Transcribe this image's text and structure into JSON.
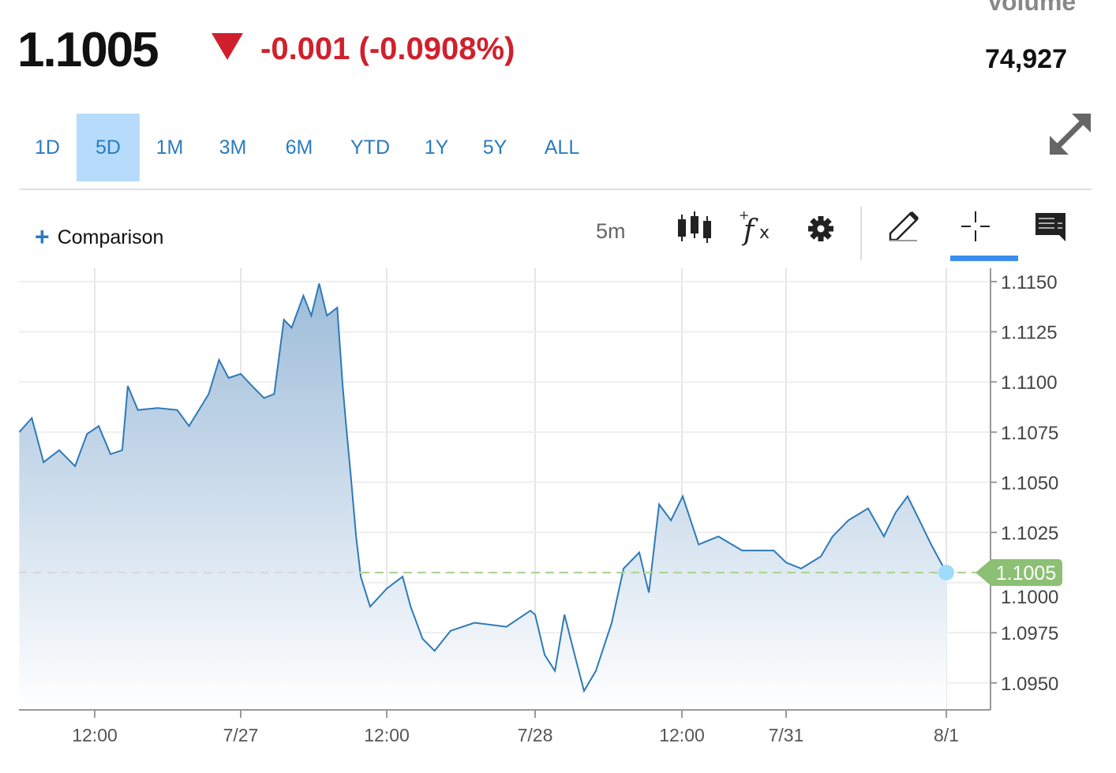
{
  "quote": {
    "price": "1.1005",
    "change": "-0.001 (-0.0908%)",
    "direction": "down",
    "volume_label": "Volume",
    "volume": "74,927",
    "down_color": "#d0202d"
  },
  "ranges": [
    {
      "label": "1D",
      "active": false
    },
    {
      "label": "5D",
      "active": true
    },
    {
      "label": "1M",
      "active": false
    },
    {
      "label": "3M",
      "active": false
    },
    {
      "label": "6M",
      "active": false
    },
    {
      "label": "YTD",
      "active": false
    },
    {
      "label": "1Y",
      "active": false
    },
    {
      "label": "5Y",
      "active": false
    },
    {
      "label": "ALL",
      "active": false
    }
  ],
  "toolbar": {
    "comparison": "Comparison",
    "interval": "5m",
    "tools": [
      "candlestick-icon",
      "indicator-fx-icon",
      "gear-icon",
      "pencil-icon",
      "crosshair-icon",
      "comment-icon"
    ],
    "active_tool": "crosshair-icon"
  },
  "chart_data": {
    "type": "area",
    "line_color": "#2d7ab8",
    "x_ticks": [
      "12:00",
      "7/27",
      "12:00",
      "7/28",
      "12:00",
      "7/31",
      "8/1"
    ],
    "y_ticks": [
      "1.1150",
      "1.1125",
      "1.1100",
      "1.1075",
      "1.1050",
      "1.1025",
      "1.1000",
      "1.0975",
      "1.0950"
    ],
    "ylim": [
      1.0936,
      1.115
    ],
    "grid": true,
    "last_value": "1.1005",
    "last_value_color": "#8cc074",
    "points": [
      [
        "7/26 05:48",
        1.1075
      ],
      [
        "7/26 06:50",
        1.1082
      ],
      [
        "7/26 07:48",
        1.106
      ],
      [
        "7/26 09:05",
        1.1066
      ],
      [
        "7/26 10:23",
        1.1058
      ],
      [
        "7/26 11:22",
        1.1074
      ],
      [
        "7/26 12:20",
        1.1078
      ],
      [
        "7/26 13:18",
        1.1064
      ],
      [
        "7/26 14:16",
        1.1066
      ],
      [
        "7/26 14:43",
        1.1098
      ],
      [
        "7/26 15:33",
        1.1086
      ],
      [
        "7/26 17:10",
        1.1087
      ],
      [
        "7/26 18:47",
        1.1086
      ],
      [
        "7/26 19:45",
        1.1078
      ],
      [
        "7/26 21:22",
        1.1094
      ],
      [
        "7/26 22:13",
        1.1111
      ],
      [
        "7/26 23:00",
        1.1102
      ],
      [
        "7/27 00:00",
        1.1104
      ],
      [
        "7/27 00:56",
        1.1098
      ],
      [
        "7/27 01:55",
        1.1092
      ],
      [
        "7/27 02:45",
        1.1094
      ],
      [
        "7/27 03:33",
        1.1131
      ],
      [
        "7/27 04:11",
        1.1127
      ],
      [
        "7/27 05:09",
        1.1143
      ],
      [
        "7/27 05:48",
        1.1133
      ],
      [
        "7/27 06:27",
        1.1149
      ],
      [
        "7/27 07:05",
        1.1133
      ],
      [
        "7/27 07:56",
        1.1137
      ],
      [
        "7/27 08:23",
        1.1098
      ],
      [
        "7/27 08:42",
        1.1076
      ],
      [
        "7/27 09:02",
        1.1054
      ],
      [
        "7/27 09:29",
        1.1023
      ],
      [
        "7/27 09:52",
        1.1003
      ],
      [
        "7/27 10:38",
        1.0988
      ],
      [
        "7/27 12:00",
        1.0997
      ],
      [
        "7/27 13:17",
        1.1003
      ],
      [
        "7/27 13:56",
        1.0988
      ],
      [
        "7/27 14:54",
        1.0972
      ],
      [
        "7/27 15:52",
        1.0966
      ],
      [
        "7/27 17:10",
        1.0976
      ],
      [
        "7/27 19:06",
        1.098
      ],
      [
        "7/27 21:41",
        1.0978
      ],
      [
        "7/27 23:37",
        1.0986
      ],
      [
        "7/28 00:00",
        1.0984
      ],
      [
        "7/28 00:47",
        1.0964
      ],
      [
        "7/28 01:37",
        1.0956
      ],
      [
        "7/28 02:24",
        1.0984
      ],
      [
        "7/28 03:14",
        1.0964
      ],
      [
        "7/28 04:00",
        1.0946
      ],
      [
        "7/28 04:58",
        1.0956
      ],
      [
        "7/28 06:16",
        1.098
      ],
      [
        "7/28 07:14",
        1.1007
      ],
      [
        "7/28 08:31",
        1.1015
      ],
      [
        "7/28 09:18",
        1.0995
      ],
      [
        "7/28 10:08",
        1.1039
      ],
      [
        "7/28 11:06",
        1.1031
      ],
      [
        "7/28 12:04",
        1.1043
      ],
      [
        "7/28 13:22",
        1.1019
      ],
      [
        "7/28 14:59",
        1.1023
      ],
      [
        "7/28 16:55",
        1.1016
      ],
      [
        "7/28 19:30",
        1.1016
      ],
      [
        "7/31 00:00",
        1.101
      ],
      [
        "7/31 02:15",
        1.1007
      ],
      [
        "7/31 05:12",
        1.1013
      ],
      [
        "7/31 06:58",
        1.1023
      ],
      [
        "7/31 09:20",
        1.1031
      ],
      [
        "7/31 12:17",
        1.1037
      ],
      [
        "7/31 14:39",
        1.1023
      ],
      [
        "7/31 16:25",
        1.1035
      ],
      [
        "7/31 18:12",
        1.1043
      ],
      [
        "7/31 19:58",
        1.1031
      ],
      [
        "7/31 21:44",
        1.1019
      ],
      [
        "8/1 00:00",
        1.1005
      ]
    ]
  }
}
